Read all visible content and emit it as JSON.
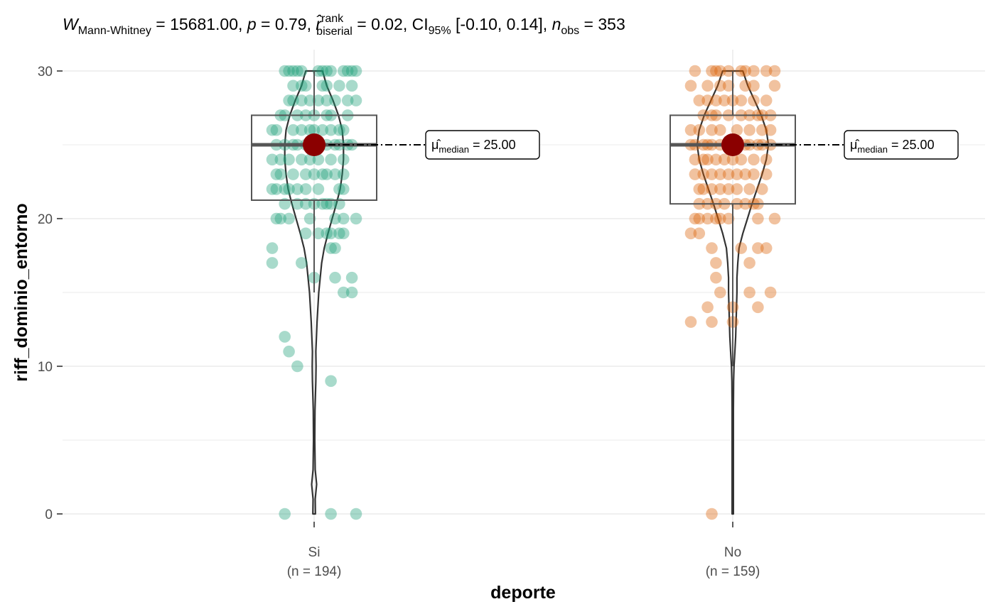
{
  "chart_data": {
    "type": "violin-box-scatter",
    "subtitle": {
      "stat_symbol": "W",
      "stat_sub": "Mann-Whitney",
      "stat_value": " = 15681.00, ",
      "p_symbol": "p",
      "p_value": " = 0.79, ",
      "r_symbol": "r̂",
      "r_sup": "rank",
      "r_sub": "biserial",
      "r_value": " = 0.02, CI",
      "ci_sub": "95%",
      "ci_value": " [-0.10, 0.14], ",
      "n_symbol": "n",
      "n_sub": "obs",
      "n_value": " = 353"
    },
    "xlabel": "deporte",
    "ylabel": "riff_dominio_entorno",
    "ylim": [
      0,
      30
    ],
    "yticks": [
      "0",
      "10",
      "20",
      "30"
    ],
    "grid": true,
    "groups": [
      {
        "category": "Si",
        "n_label": "(n = 194)",
        "color": "#1b9e77",
        "box": {
          "q1": 21.25,
          "median": 25,
          "q3": 27,
          "whisker_low": 15,
          "whisker_high": 30
        },
        "median_label": {
          "mu": "μ̂",
          "sub": "median",
          "value": " = 25.00"
        },
        "median": 25,
        "violin_halfwidth": [
          [
            0,
            0.003
          ],
          [
            1,
            0.0025
          ],
          [
            2,
            0.006
          ],
          [
            3,
            0.0025
          ],
          [
            5,
            0.0015
          ],
          [
            7,
            0.002
          ],
          [
            9,
            0.004
          ],
          [
            10,
            0.0045
          ],
          [
            11,
            0.004
          ],
          [
            13,
            0.007
          ],
          [
            15,
            0.011
          ],
          [
            17,
            0.018
          ],
          [
            18,
            0.024
          ],
          [
            19,
            0.033
          ],
          [
            20,
            0.043
          ],
          [
            21,
            0.053
          ],
          [
            22,
            0.062
          ],
          [
            23,
            0.067
          ],
          [
            24,
            0.07
          ],
          [
            25,
            0.07
          ],
          [
            26,
            0.067
          ],
          [
            27,
            0.058
          ],
          [
            28,
            0.045
          ],
          [
            29,
            0.03
          ],
          [
            30,
            0.02
          ]
        ],
        "points": [
          [
            -0.07,
            30
          ],
          [
            -0.06,
            30
          ],
          [
            -0.05,
            30
          ],
          [
            -0.04,
            30
          ],
          [
            -0.03,
            30
          ],
          [
            0.01,
            30
          ],
          [
            0.02,
            30
          ],
          [
            0.03,
            30
          ],
          [
            0.04,
            30
          ],
          [
            0.07,
            30
          ],
          [
            0.08,
            30
          ],
          [
            0.09,
            30
          ],
          [
            0.1,
            30
          ],
          [
            -0.05,
            29
          ],
          [
            -0.03,
            29
          ],
          [
            -0.02,
            29
          ],
          [
            0.02,
            29
          ],
          [
            0.03,
            29
          ],
          [
            0.06,
            29
          ],
          [
            0.09,
            29
          ],
          [
            -0.06,
            28
          ],
          [
            -0.05,
            28
          ],
          [
            -0.03,
            28
          ],
          [
            -0.01,
            28
          ],
          [
            0.01,
            28
          ],
          [
            0.03,
            28
          ],
          [
            0.05,
            28
          ],
          [
            0.08,
            28
          ],
          [
            0.1,
            28
          ],
          [
            -0.08,
            27
          ],
          [
            -0.07,
            27
          ],
          [
            -0.04,
            27
          ],
          [
            -0.02,
            27
          ],
          [
            0.0,
            27
          ],
          [
            0.03,
            27
          ],
          [
            0.04,
            27
          ],
          [
            0.08,
            27
          ],
          [
            -0.1,
            26
          ],
          [
            -0.09,
            26
          ],
          [
            -0.05,
            26
          ],
          [
            -0.03,
            26
          ],
          [
            -0.01,
            26
          ],
          [
            0.0,
            26
          ],
          [
            0.02,
            26
          ],
          [
            0.04,
            26
          ],
          [
            0.06,
            26
          ],
          [
            0.07,
            26
          ],
          [
            -0.09,
            25
          ],
          [
            -0.07,
            25
          ],
          [
            -0.05,
            25
          ],
          [
            -0.04,
            25
          ],
          [
            -0.02,
            25
          ],
          [
            0.0,
            25
          ],
          [
            0.03,
            25
          ],
          [
            0.05,
            25
          ],
          [
            0.06,
            25
          ],
          [
            0.08,
            25
          ],
          [
            0.09,
            25
          ],
          [
            -0.1,
            24
          ],
          [
            -0.08,
            24
          ],
          [
            -0.06,
            24
          ],
          [
            -0.03,
            24
          ],
          [
            -0.01,
            24
          ],
          [
            0.01,
            24
          ],
          [
            0.04,
            24
          ],
          [
            0.07,
            24
          ],
          [
            -0.09,
            23
          ],
          [
            -0.08,
            23
          ],
          [
            -0.05,
            23
          ],
          [
            -0.02,
            23
          ],
          [
            0.0,
            23
          ],
          [
            0.02,
            23
          ],
          [
            0.03,
            23
          ],
          [
            0.05,
            23
          ],
          [
            0.07,
            23
          ],
          [
            -0.1,
            22
          ],
          [
            -0.09,
            22
          ],
          [
            -0.07,
            22
          ],
          [
            -0.06,
            22
          ],
          [
            -0.04,
            22
          ],
          [
            -0.02,
            22
          ],
          [
            0.01,
            22
          ],
          [
            0.06,
            22
          ],
          [
            0.07,
            22
          ],
          [
            -0.07,
            21
          ],
          [
            -0.04,
            21
          ],
          [
            -0.02,
            21
          ],
          [
            0.0,
            21
          ],
          [
            0.02,
            21
          ],
          [
            0.03,
            21
          ],
          [
            0.04,
            21
          ],
          [
            0.06,
            21
          ],
          [
            -0.09,
            20
          ],
          [
            -0.08,
            20
          ],
          [
            -0.06,
            20
          ],
          [
            -0.01,
            20
          ],
          [
            0.05,
            20
          ],
          [
            0.07,
            20
          ],
          [
            0.1,
            20
          ],
          [
            -0.02,
            19
          ],
          [
            0.01,
            19
          ],
          [
            0.03,
            19
          ],
          [
            0.04,
            19
          ],
          [
            0.06,
            19
          ],
          [
            0.07,
            19
          ],
          [
            -0.1,
            18
          ],
          [
            0.04,
            18
          ],
          [
            0.05,
            18
          ],
          [
            -0.1,
            17
          ],
          [
            -0.03,
            17
          ],
          [
            0.0,
            16
          ],
          [
            0.05,
            16
          ],
          [
            0.09,
            16
          ],
          [
            0.07,
            15
          ],
          [
            0.09,
            15
          ],
          [
            -0.07,
            12
          ],
          [
            -0.06,
            11
          ],
          [
            -0.04,
            10
          ],
          [
            0.04,
            9
          ],
          [
            -0.07,
            0
          ],
          [
            0.04,
            0
          ],
          [
            0.1,
            0
          ]
        ]
      },
      {
        "category": "No",
        "n_label": "(n = 159)",
        "color": "#d95f02",
        "box": {
          "q1": 21,
          "median": 25,
          "q3": 27,
          "whisker_low": 10,
          "whisker_high": 30
        },
        "median_label": {
          "mu": "μ̂",
          "sub": "median",
          "value": " = 25.00"
        },
        "median": 25,
        "violin_halfwidth": [
          [
            0,
            0.0015
          ],
          [
            1,
            0.0015
          ],
          [
            3,
            0.0015
          ],
          [
            5,
            0.0015
          ],
          [
            7,
            0.0015
          ],
          [
            9,
            0.002
          ],
          [
            10,
            0.003
          ],
          [
            11,
            0.005
          ],
          [
            12,
            0.007
          ],
          [
            13,
            0.008
          ],
          [
            14,
            0.009
          ],
          [
            15,
            0.01
          ],
          [
            16,
            0.01
          ],
          [
            17,
            0.012
          ],
          [
            18,
            0.015
          ],
          [
            19,
            0.024
          ],
          [
            20,
            0.035
          ],
          [
            21,
            0.046
          ],
          [
            22,
            0.058
          ],
          [
            23,
            0.07
          ],
          [
            24,
            0.08
          ],
          [
            25,
            0.085
          ],
          [
            26,
            0.08
          ],
          [
            27,
            0.068
          ],
          [
            28,
            0.052
          ],
          [
            29,
            0.036
          ],
          [
            30,
            0.024
          ]
        ],
        "points": [
          [
            -0.09,
            30
          ],
          [
            -0.05,
            30
          ],
          [
            -0.04,
            30
          ],
          [
            -0.03,
            30
          ],
          [
            -0.01,
            30
          ],
          [
            0.02,
            30
          ],
          [
            0.03,
            30
          ],
          [
            0.05,
            30
          ],
          [
            0.08,
            30
          ],
          [
            0.1,
            30
          ],
          [
            -0.1,
            29
          ],
          [
            -0.06,
            29
          ],
          [
            -0.03,
            29
          ],
          [
            -0.01,
            29
          ],
          [
            0.03,
            29
          ],
          [
            0.05,
            29
          ],
          [
            0.1,
            29
          ],
          [
            -0.08,
            28
          ],
          [
            -0.06,
            28
          ],
          [
            -0.04,
            28
          ],
          [
            -0.02,
            28
          ],
          [
            0.0,
            28
          ],
          [
            0.02,
            28
          ],
          [
            0.05,
            28
          ],
          [
            0.08,
            28
          ],
          [
            -0.07,
            27
          ],
          [
            -0.05,
            27
          ],
          [
            -0.04,
            27
          ],
          [
            -0.01,
            27
          ],
          [
            0.02,
            27
          ],
          [
            0.04,
            27
          ],
          [
            0.06,
            27
          ],
          [
            0.07,
            27
          ],
          [
            0.09,
            27
          ],
          [
            -0.1,
            26
          ],
          [
            -0.08,
            26
          ],
          [
            -0.05,
            26
          ],
          [
            -0.03,
            26
          ],
          [
            0.01,
            26
          ],
          [
            0.04,
            26
          ],
          [
            0.07,
            26
          ],
          [
            0.09,
            26
          ],
          [
            -0.1,
            25
          ],
          [
            -0.09,
            25
          ],
          [
            -0.07,
            25
          ],
          [
            -0.06,
            25
          ],
          [
            -0.05,
            25
          ],
          [
            -0.03,
            25
          ],
          [
            -0.01,
            25
          ],
          [
            0.03,
            25
          ],
          [
            0.04,
            25
          ],
          [
            0.06,
            25
          ],
          [
            0.07,
            25
          ],
          [
            0.09,
            25
          ],
          [
            -0.09,
            24
          ],
          [
            -0.07,
            24
          ],
          [
            -0.06,
            24
          ],
          [
            -0.04,
            24
          ],
          [
            -0.02,
            24
          ],
          [
            0.0,
            24
          ],
          [
            0.02,
            24
          ],
          [
            0.05,
            24
          ],
          [
            0.08,
            24
          ],
          [
            -0.09,
            23
          ],
          [
            -0.07,
            23
          ],
          [
            -0.05,
            23
          ],
          [
            -0.03,
            23
          ],
          [
            -0.01,
            23
          ],
          [
            0.01,
            23
          ],
          [
            0.03,
            23
          ],
          [
            0.05,
            23
          ],
          [
            0.08,
            23
          ],
          [
            -0.08,
            22
          ],
          [
            -0.07,
            22
          ],
          [
            -0.05,
            22
          ],
          [
            -0.03,
            22
          ],
          [
            -0.01,
            22
          ],
          [
            0.01,
            22
          ],
          [
            0.04,
            22
          ],
          [
            0.07,
            22
          ],
          [
            -0.08,
            21
          ],
          [
            -0.06,
            21
          ],
          [
            -0.04,
            21
          ],
          [
            -0.02,
            21
          ],
          [
            0.01,
            21
          ],
          [
            0.03,
            21
          ],
          [
            0.05,
            21
          ],
          [
            0.06,
            21
          ],
          [
            -0.09,
            20
          ],
          [
            -0.08,
            20
          ],
          [
            -0.06,
            20
          ],
          [
            -0.04,
            20
          ],
          [
            -0.03,
            20
          ],
          [
            -0.01,
            20
          ],
          [
            0.06,
            20
          ],
          [
            0.1,
            20
          ],
          [
            -0.1,
            19
          ],
          [
            -0.08,
            19
          ],
          [
            -0.05,
            18
          ],
          [
            0.02,
            18
          ],
          [
            0.06,
            18
          ],
          [
            0.08,
            18
          ],
          [
            -0.04,
            17
          ],
          [
            0.04,
            17
          ],
          [
            -0.04,
            16
          ],
          [
            -0.03,
            15
          ],
          [
            0.04,
            15
          ],
          [
            0.09,
            15
          ],
          [
            -0.06,
            14
          ],
          [
            0.0,
            14
          ],
          [
            0.06,
            14
          ],
          [
            -0.1,
            13
          ],
          [
            -0.05,
            13
          ],
          [
            0.0,
            13
          ],
          [
            -0.05,
            0
          ]
        ]
      }
    ]
  }
}
